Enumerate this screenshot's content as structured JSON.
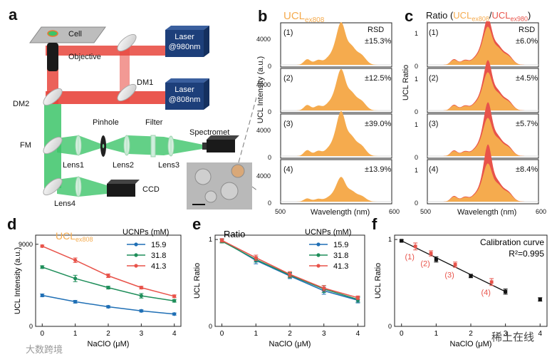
{
  "colors": {
    "orange": "#f5ab4e",
    "red": "#e8534a",
    "blue": "#1f6fb5",
    "green": "#1f8e5a",
    "laser_red": "#e8453c",
    "laser_green": "#3cc469",
    "dark_blue": "#1d3f7a"
  },
  "panel_labels": {
    "a": "a",
    "b": "b",
    "c": "c",
    "d": "d",
    "e": "e",
    "f": "f"
  },
  "optics": {
    "cell": "Cell",
    "objective": "Objective",
    "laser1_l1": "Laser",
    "laser1_l2": "@980nm",
    "laser2_l1": "Laser",
    "laser2_l2": "@808nm",
    "dm1": "DM1",
    "dm2": "DM2",
    "fm": "FM",
    "pinhole": "Pinhole",
    "filter": "Filter",
    "spectrometer": "Spectromet",
    "lens1": "Lens1",
    "lens2": "Lens2",
    "lens3": "Lens3",
    "lens4": "Lens4",
    "ccd": "CCD"
  },
  "panel_b": {
    "title_main": "UCL",
    "title_sub": "ex808",
    "ylabel": "UCL Intensity (a.u.)",
    "xlabel": "Wavelength (nm)",
    "rsd_label": "RSD",
    "x_min": "500",
    "x_max": "600",
    "tick_4000": "4000",
    "tick_0": "0",
    "rows": [
      {
        "id": "(1)",
        "rsd": "±15.3%",
        "scale": 0.95
      },
      {
        "id": "(2)",
        "rsd": "±12.5%",
        "scale": 0.92
      },
      {
        "id": "(3)",
        "rsd": "±39.0%",
        "scale": 1.0
      },
      {
        "id": "(4)",
        "rsd": "±13.9%",
        "scale": 0.55
      }
    ]
  },
  "panel_c": {
    "title_pre": "Ratio (",
    "title_ucl1": "UCL",
    "title_sub1": "ex808",
    "title_slash": "/",
    "title_ucl2": "UCL",
    "title_sub2": "ex980",
    "title_post": ")",
    "ylabel": "UCL Ratio",
    "xlabel": "Wavelength (nm)",
    "rsd_label": "RSD",
    "x_min": "500",
    "x_max": "600",
    "tick_1": "1",
    "tick_0": "0",
    "rows": [
      {
        "id": "(1)",
        "rsd": "±6.0%",
        "scale": 0.85
      },
      {
        "id": "(2)",
        "rsd": "±4.5%",
        "scale": 0.85
      },
      {
        "id": "(3)",
        "rsd": "±5.7%",
        "scale": 0.85
      },
      {
        "id": "(4)",
        "rsd": "±8.4%",
        "scale": 0.85
      }
    ]
  },
  "chart_data": [
    {
      "type": "line",
      "panel": "d",
      "title_main": "UCL",
      "title_sub": "ex808",
      "xlabel": "NaClO  (μM)",
      "ylabel": "UCL Intensity (a.u.)",
      "legend_title": "UCNPs (mM)",
      "x": [
        0,
        1,
        2,
        3,
        4
      ],
      "xlim": [
        -0.2,
        4.2
      ],
      "ylim": [
        0,
        10000
      ],
      "yticks": [
        {
          "v": 0,
          "label": "0"
        },
        {
          "v": 9000,
          "label": "9000"
        }
      ],
      "xticks": [
        "0",
        "1",
        "2",
        "3",
        "4"
      ],
      "series": [
        {
          "name": "15.9",
          "color": "#1f6fb5",
          "values": [
            3400,
            2700,
            2150,
            1700,
            1350
          ],
          "errors": [
            150,
            150,
            120,
            120,
            120
          ]
        },
        {
          "name": "31.8",
          "color": "#1f8e5a",
          "values": [
            6500,
            5250,
            4250,
            3350,
            2800
          ],
          "errors": [
            150,
            350,
            150,
            250,
            150
          ]
        },
        {
          "name": "41.3",
          "color": "#e8534a",
          "values": [
            8800,
            7250,
            5550,
            4250,
            3300
          ],
          "errors": [
            120,
            250,
            200,
            150,
            150
          ]
        }
      ]
    },
    {
      "type": "line",
      "panel": "e",
      "title": "Ratio",
      "xlabel": "NaClO  (μM)",
      "ylabel": "UCL Ratio",
      "legend_title": "UCNPs (mM)",
      "x": [
        0,
        1,
        2,
        3,
        4
      ],
      "xlim": [
        -0.2,
        4.2
      ],
      "ylim": [
        0,
        1.05
      ],
      "yticks": [
        {
          "v": 0,
          "label": "0"
        },
        {
          "v": 1,
          "label": "1"
        }
      ],
      "xticks": [
        "0",
        "1",
        "2",
        "3",
        "4"
      ],
      "series": [
        {
          "name": "15.9",
          "color": "#1f6fb5",
          "values": [
            0.99,
            0.76,
            0.58,
            0.41,
            0.3
          ],
          "errors": [
            0.02,
            0.04,
            0.03,
            0.04,
            0.03
          ]
        },
        {
          "name": "31.8",
          "color": "#1f8e5a",
          "values": [
            0.98,
            0.77,
            0.59,
            0.43,
            0.31
          ],
          "errors": [
            0.02,
            0.03,
            0.03,
            0.04,
            0.03
          ]
        },
        {
          "name": "41.3",
          "color": "#e8534a",
          "values": [
            0.99,
            0.79,
            0.6,
            0.44,
            0.33
          ],
          "errors": [
            0.02,
            0.03,
            0.03,
            0.03,
            0.02
          ]
        }
      ]
    },
    {
      "type": "scatter",
      "panel": "f",
      "title": "Calibration curve",
      "r2": "R²=0.995",
      "xlabel": "NaClO  (μM)",
      "ylabel": "UCL Ratio",
      "xlim": [
        -0.2,
        4.2
      ],
      "ylim": [
        0,
        1.05
      ],
      "yticks": [
        {
          "v": 0,
          "label": "0"
        },
        {
          "v": 1,
          "label": "1"
        }
      ],
      "xticks": [
        "0",
        "1",
        "2",
        "3",
        "4"
      ],
      "fit": [
        [
          0,
          0.985
        ],
        [
          3,
          0.4
        ]
      ],
      "calibration": [
        {
          "x": 0,
          "y": 0.985,
          "e": 0.01
        },
        {
          "x": 1,
          "y": 0.77,
          "e": 0.03
        },
        {
          "x": 2,
          "y": 0.58,
          "e": 0.02
        },
        {
          "x": 3,
          "y": 0.4,
          "e": 0.03
        },
        {
          "x": 4,
          "y": 0.31,
          "e": 0.02
        }
      ],
      "samples": [
        {
          "label": "(1)",
          "x": 0.4,
          "y": 0.92,
          "e": 0.04
        },
        {
          "label": "(2)",
          "x": 0.85,
          "y": 0.84,
          "e": 0.03
        },
        {
          "label": "(3)",
          "x": 1.55,
          "y": 0.71,
          "e": 0.03
        },
        {
          "label": "(4)",
          "x": 2.6,
          "y": 0.51,
          "e": 0.04
        }
      ]
    }
  ],
  "watermarks": {
    "left": "大数跨境",
    "right": "稀土在线"
  }
}
